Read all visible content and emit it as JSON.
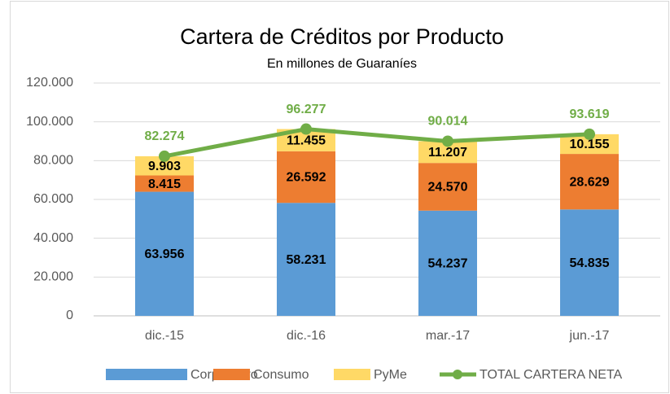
{
  "chart_data": {
    "type": "bar",
    "stacked": true,
    "title": "Cartera de Créditos por Producto",
    "subtitle": "En millones de Guaraníes",
    "categories": [
      "dic.-15",
      "dic.-16",
      "mar.-17",
      "jun.-17"
    ],
    "series": [
      {
        "name": "Corporativo",
        "type": "bar",
        "color": "#5b9bd5",
        "values": [
          63956,
          58231,
          54237,
          54835
        ],
        "value_labels": [
          "63.956",
          "58.231",
          "54.237",
          "54.835"
        ]
      },
      {
        "name": "Consumo",
        "type": "bar",
        "color": "#ed7d31",
        "values": [
          8415,
          26592,
          24570,
          28629
        ],
        "value_labels": [
          "8.415",
          "26.592",
          "24.570",
          "28.629"
        ]
      },
      {
        "name": "PyMe",
        "type": "bar",
        "color": "#ffd966",
        "values": [
          9903,
          11455,
          11207,
          10155
        ],
        "value_labels": [
          "9.903",
          "11.455",
          "11.207",
          "10.155"
        ]
      },
      {
        "name": "TOTAL CARTERA NETA",
        "type": "line",
        "color": "#70ad47",
        "values": [
          82274,
          96277,
          90014,
          93619
        ],
        "value_labels": [
          "82.274",
          "96.277",
          "90.014",
          "93.619"
        ]
      }
    ],
    "ylim": [
      0,
      120000
    ],
    "yticks": [
      0,
      {
        "value": 20000,
        "label": "20.000"
      },
      {
        "value": 40000,
        "label": "40.000"
      },
      {
        "value": 60000,
        "label": "60.000"
      },
      {
        "value": 80000,
        "label": "80.000"
      },
      {
        "value": 100000,
        "label": "100.000"
      },
      {
        "value": 120000,
        "label": "120.000"
      }
    ],
    "grid": true,
    "legend": "bottom"
  }
}
